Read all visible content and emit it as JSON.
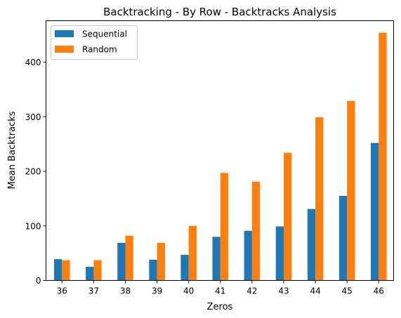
{
  "chart_data": {
    "type": "bar",
    "title": "Backtracking - By Row - Backtracks Analysis",
    "xlabel": "Zeros",
    "ylabel": "Mean Backtracks",
    "categories": [
      "36",
      "37",
      "38",
      "39",
      "40",
      "41",
      "42",
      "43",
      "44",
      "45",
      "46"
    ],
    "series": [
      {
        "name": "Sequential",
        "color": "#1f77b4",
        "values": [
          39,
          25,
          69,
          38,
          47,
          80,
          91,
          99,
          131,
          155,
          252
        ]
      },
      {
        "name": "Random",
        "color": "#ff7f0e",
        "values": [
          37,
          37,
          82,
          69,
          100,
          197,
          181,
          234,
          299,
          329,
          454
        ]
      }
    ],
    "ylim": [
      0,
      476
    ],
    "yticks": [
      0,
      100,
      200,
      300,
      400
    ],
    "grid": false,
    "legend": "top-left"
  }
}
